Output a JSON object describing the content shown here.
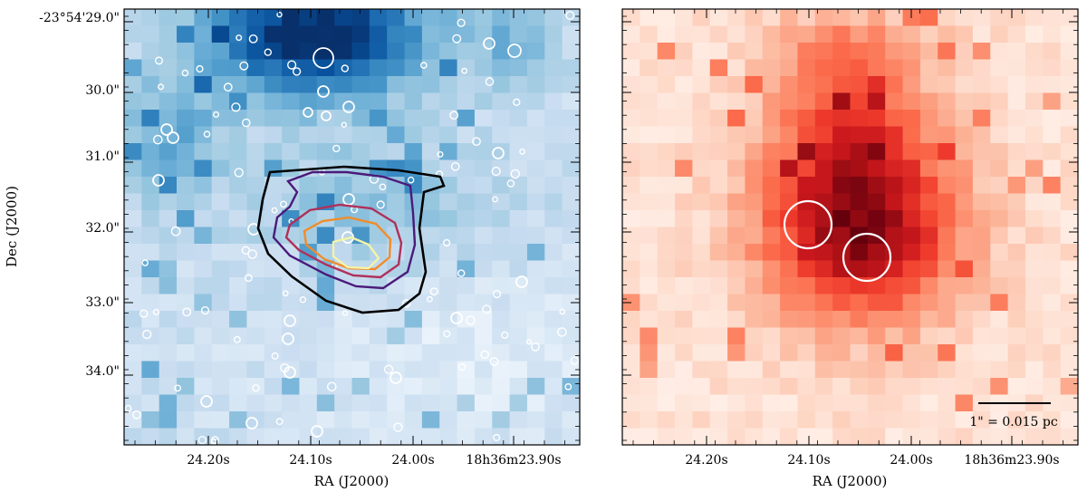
{
  "chart_data": [
    {
      "type": "heatmap",
      "title": "",
      "colormap": "Blues",
      "xlabel": "RA (J2000)",
      "ylabel": "Dec (J2000)",
      "x_tick_labels": [
        "24.20s",
        "24.10s",
        "24.00s",
        "18h36m23.90s"
      ],
      "y_tick_labels": [
        "-23°54'29.0\"",
        "30.0\"",
        "31.0\"",
        "32.0\"",
        "33.0\"",
        "34.0\""
      ],
      "contours": {
        "levels": [
          "level-1",
          "level-2",
          "level-3",
          "level-4",
          "level-5"
        ],
        "colors": [
          "#000000",
          "#4b1a7a",
          "#b0305a",
          "#f08c2a",
          "#f4f3a8"
        ]
      },
      "markers": "open white circles (detected sources)"
    },
    {
      "type": "heatmap",
      "title": "",
      "colormap": "Reds",
      "xlabel": "RA (J2000)",
      "x_tick_labels": [
        "24.20s",
        "24.10s",
        "24.00s",
        "18h36m23.90s"
      ],
      "scalebar_label": "1\" = 0.015 pc",
      "markers": "two large open white circles"
    }
  ]
}
